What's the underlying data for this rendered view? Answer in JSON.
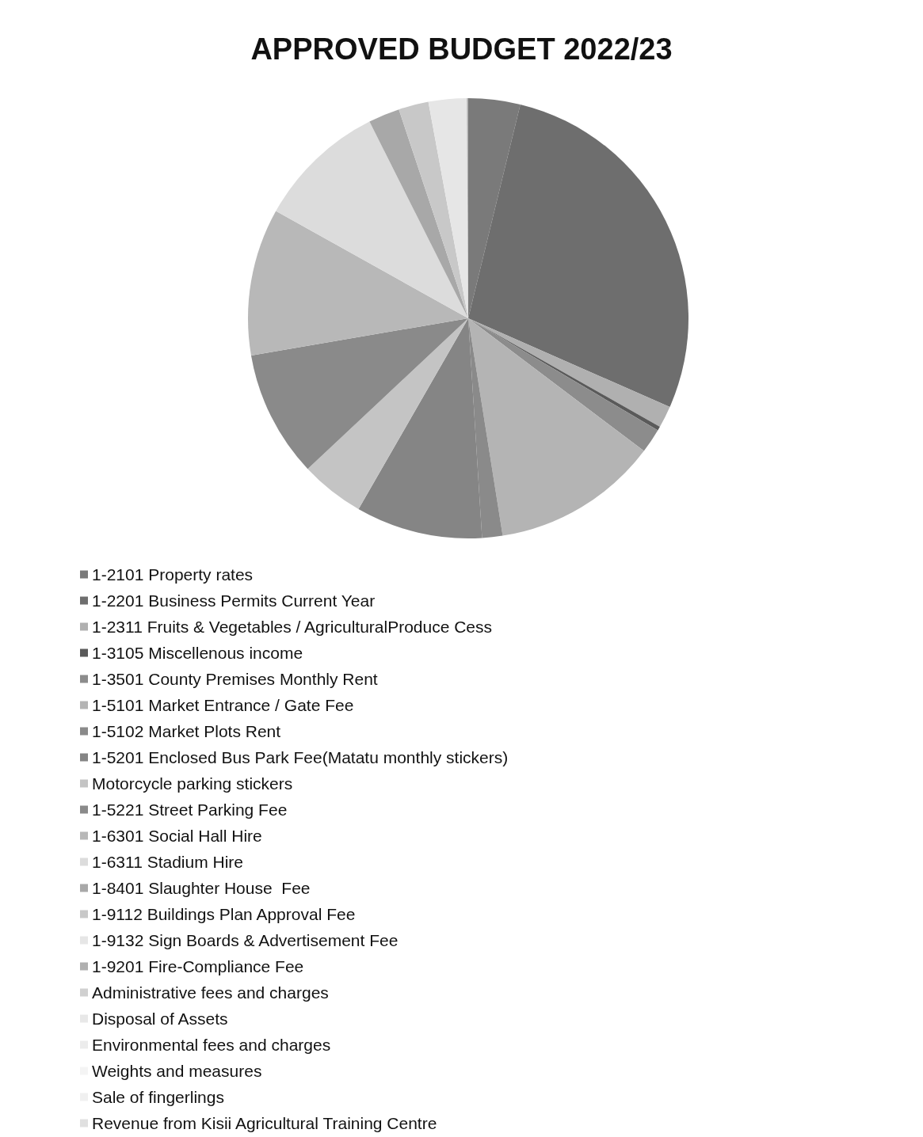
{
  "chart_data": {
    "type": "pie",
    "title": "APPROVED BUDGET 2022/23",
    "categories": [
      "1-2101 Property rates",
      "1-2201 Business Permits Current Year",
      "1-2311 Fruits & Vegetables / AgriculturalProduce Cess",
      "1-3105 Miscellenous income",
      "1-3501 County Premises Monthly Rent",
      "1-5101 Market Entrance / Gate Fee",
      "1-5102 Market Plots Rent",
      "1-5201 Enclosed Bus Park Fee(Matatu monthly stickers)",
      "Motorcycle parking stickers",
      "1-5221 Street Parking Fee",
      "1-6301 Social Hall Hire",
      "1-6311 Stadium Hire",
      "1-8401 Slaughter House  Fee",
      "1-9112 Buildings Plan Approval Fee",
      "1-9132 Sign Boards & Advertisement Fee",
      "1-9201 Fire-Compliance Fee",
      "Administrative fees and charges",
      "Disposal of Assets",
      "Environmental fees and charges",
      "Weights and measures",
      "Sale of fingerlings",
      "Revenue from Kisii Agricultural Training Centre"
    ],
    "values": [
      3.8,
      27.8,
      1.6,
      0.3,
      1.8,
      12.2,
      1.5,
      9.3,
      4.7,
      9.3,
      10.8,
      9.5,
      2.3,
      2.2,
      2.8,
      0.1,
      0,
      0,
      0,
      0,
      0,
      0
    ],
    "colors": [
      "#7a7a7a",
      "#6e6e6e",
      "#b0b0b0",
      "#5a5a5a",
      "#8c8c8c",
      "#b4b4b4",
      "#8a8a8a",
      "#858585",
      "#c4c4c4",
      "#8a8a8a",
      "#b8b8b8",
      "#dcdcdc",
      "#a8a8a8",
      "#c8c8c8",
      "#e6e6e6",
      "#b0b0b0",
      "#d0d0d0",
      "#e8e8e8",
      "#ececec",
      "#f4f4f4",
      "#f0f0f0",
      "#e0e0e0"
    ],
    "legend": "bottom left"
  }
}
